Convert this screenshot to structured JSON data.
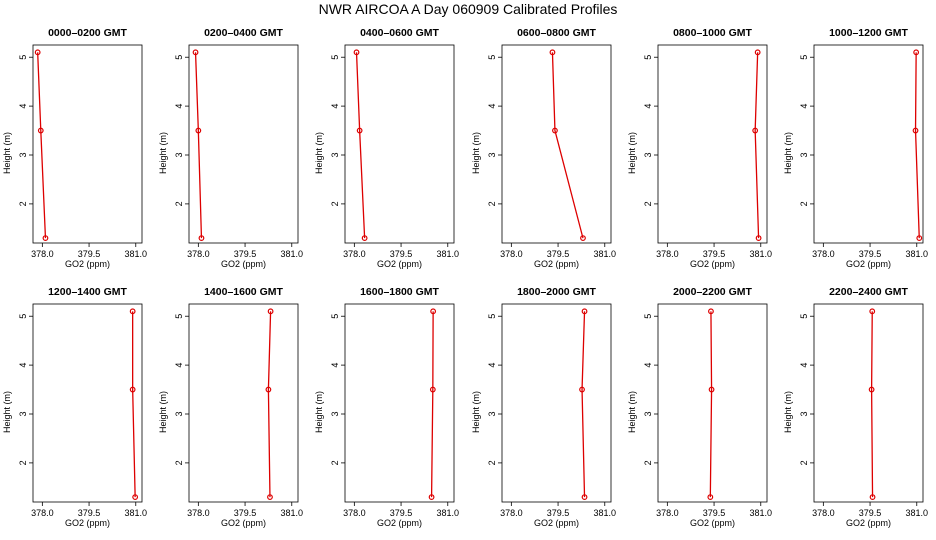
{
  "title": "NWR AIRCOA A  Day 060909  Calibrated Profiles",
  "chart_data": [
    {
      "type": "line",
      "title": "0000–0200 GMT",
      "xlabel": "GO2 (ppm)",
      "ylabel": "Height (m)",
      "xlim": [
        377.7,
        381.2
      ],
      "ylim": [
        1.2,
        5.25
      ],
      "xticks": [
        "378.0",
        "379.5",
        "381.0"
      ],
      "yticks": [
        "2",
        "3",
        "4",
        "5"
      ],
      "series": [
        {
          "x": [
            377.85,
            377.95,
            378.1
          ],
          "y": [
            5.1,
            3.5,
            1.3
          ]
        }
      ]
    },
    {
      "type": "line",
      "title": "0200–0400 GMT",
      "xlabel": "GO2 (ppm)",
      "ylabel": "Height (m)",
      "xlim": [
        377.7,
        381.2
      ],
      "ylim": [
        1.2,
        5.25
      ],
      "xticks": [
        "378.0",
        "379.5",
        "381.0"
      ],
      "yticks": [
        "2",
        "3",
        "4",
        "5"
      ],
      "series": [
        {
          "x": [
            377.91,
            378.0,
            378.1
          ],
          "y": [
            5.1,
            3.5,
            1.3
          ]
        }
      ]
    },
    {
      "type": "line",
      "title": "0400–0600 GMT",
      "xlabel": "GO2 (ppm)",
      "ylabel": "Height (m)",
      "xlim": [
        377.7,
        381.2
      ],
      "ylim": [
        1.2,
        5.25
      ],
      "xticks": [
        "378.0",
        "379.5",
        "381.0"
      ],
      "yticks": [
        "2",
        "3",
        "4",
        "5"
      ],
      "series": [
        {
          "x": [
            378.07,
            378.17,
            378.33
          ],
          "y": [
            5.1,
            3.5,
            1.3
          ]
        }
      ]
    },
    {
      "type": "line",
      "title": "0600–0800 GMT",
      "xlabel": "GO2 (ppm)",
      "ylabel": "Height (m)",
      "xlim": [
        377.7,
        381.2
      ],
      "ylim": [
        1.2,
        5.25
      ],
      "xticks": [
        "378.0",
        "379.5",
        "381.0"
      ],
      "yticks": [
        "2",
        "3",
        "4",
        "5"
      ],
      "series": [
        {
          "x": [
            379.32,
            379.4,
            380.3
          ],
          "y": [
            5.1,
            3.5,
            1.3
          ]
        }
      ]
    },
    {
      "type": "line",
      "title": "0800–1000 GMT",
      "xlabel": "GO2 (ppm)",
      "ylabel": "Height (m)",
      "xlim": [
        377.7,
        381.2
      ],
      "ylim": [
        1.2,
        5.25
      ],
      "xticks": [
        "378.0",
        "379.5",
        "381.0"
      ],
      "yticks": [
        "2",
        "3",
        "4",
        "5"
      ],
      "series": [
        {
          "x": [
            380.9,
            380.82,
            380.93
          ],
          "y": [
            5.1,
            3.5,
            1.3
          ]
        }
      ]
    },
    {
      "type": "line",
      "title": "1000–1200 GMT",
      "xlabel": "GO2 (ppm)",
      "ylabel": "Height (m)",
      "xlim": [
        377.7,
        381.2
      ],
      "ylim": [
        1.2,
        5.25
      ],
      "xticks": [
        "378.0",
        "379.5",
        "381.0"
      ],
      "yticks": [
        "2",
        "3",
        "4",
        "5"
      ],
      "series": [
        {
          "x": [
            380.98,
            380.96,
            381.08
          ],
          "y": [
            5.1,
            3.5,
            1.3
          ]
        }
      ]
    },
    {
      "type": "line",
      "title": "1200–1400 GMT",
      "xlabel": "GO2 (ppm)",
      "ylabel": "Height (m)",
      "xlim": [
        377.7,
        381.2
      ],
      "ylim": [
        1.2,
        5.25
      ],
      "xticks": [
        "378.0",
        "379.5",
        "381.0"
      ],
      "yticks": [
        "2",
        "3",
        "4",
        "5"
      ],
      "series": [
        {
          "x": [
            380.9,
            380.9,
            380.98
          ],
          "y": [
            5.1,
            3.5,
            1.3
          ]
        }
      ]
    },
    {
      "type": "line",
      "title": "1400–1600 GMT",
      "xlabel": "GO2 (ppm)",
      "ylabel": "Height (m)",
      "xlim": [
        377.7,
        381.2
      ],
      "ylim": [
        1.2,
        5.25
      ],
      "xticks": [
        "378.0",
        "379.5",
        "381.0"
      ],
      "yticks": [
        "2",
        "3",
        "4",
        "5"
      ],
      "series": [
        {
          "x": [
            380.32,
            380.25,
            380.3
          ],
          "y": [
            5.1,
            3.5,
            1.3
          ]
        }
      ]
    },
    {
      "type": "line",
      "title": "1600–1800 GMT",
      "xlabel": "GO2 (ppm)",
      "ylabel": "Height (m)",
      "xlim": [
        377.7,
        381.2
      ],
      "ylim": [
        1.2,
        5.25
      ],
      "xticks": [
        "378.0",
        "379.5",
        "381.0"
      ],
      "yticks": [
        "2",
        "3",
        "4",
        "5"
      ],
      "series": [
        {
          "x": [
            380.53,
            380.52,
            380.48
          ],
          "y": [
            5.1,
            3.5,
            1.3
          ]
        }
      ]
    },
    {
      "type": "line",
      "title": "1800–2000 GMT",
      "xlabel": "GO2 (ppm)",
      "ylabel": "Height (m)",
      "xlim": [
        377.7,
        381.2
      ],
      "ylim": [
        1.2,
        5.25
      ],
      "xticks": [
        "378.0",
        "379.5",
        "381.0"
      ],
      "yticks": [
        "2",
        "3",
        "4",
        "5"
      ],
      "series": [
        {
          "x": [
            380.35,
            380.27,
            380.35
          ],
          "y": [
            5.1,
            3.5,
            1.3
          ]
        }
      ]
    },
    {
      "type": "line",
      "title": "2000–2200 GMT",
      "xlabel": "GO2 (ppm)",
      "ylabel": "Height (m)",
      "xlim": [
        377.7,
        381.2
      ],
      "ylim": [
        1.2,
        5.25
      ],
      "xticks": [
        "378.0",
        "379.5",
        "381.0"
      ],
      "yticks": [
        "2",
        "3",
        "4",
        "5"
      ],
      "series": [
        {
          "x": [
            379.4,
            379.42,
            379.38
          ],
          "y": [
            5.1,
            3.5,
            1.3
          ]
        }
      ]
    },
    {
      "type": "line",
      "title": "2200–2400 GMT",
      "xlabel": "GO2 (ppm)",
      "ylabel": "Height (m)",
      "xlim": [
        377.7,
        381.2
      ],
      "ylim": [
        1.2,
        5.25
      ],
      "xticks": [
        "378.0",
        "379.5",
        "381.0"
      ],
      "yticks": [
        "2",
        "3",
        "4",
        "5"
      ],
      "series": [
        {
          "x": [
            379.57,
            379.55,
            379.58
          ],
          "y": [
            5.1,
            3.5,
            1.3
          ]
        }
      ]
    }
  ],
  "colors": {
    "line": "#dd0000",
    "marker": "#dd0000",
    "axes": "#000000"
  }
}
